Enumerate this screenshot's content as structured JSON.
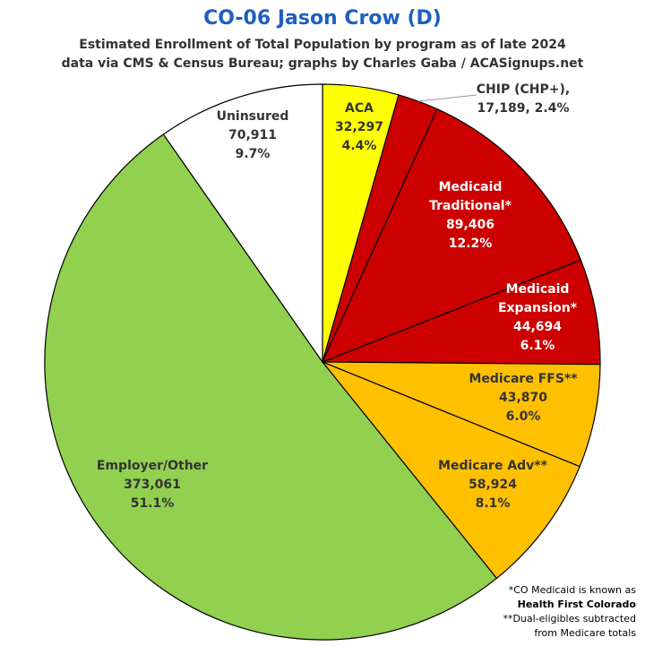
{
  "title": "CO-06 Jason Crow (D)",
  "subtitle_line1": "Estimated Enrollment of Total Population by program as of late 2024",
  "subtitle_line2": "data via CMS & Census Bureau; graphs by Charles Gaba / ACASignups.net",
  "footnotes": {
    "line1": "*CO Medicaid is known as",
    "line2": "Health First Colorado",
    "line3": "**Dual-eligibles subtracted",
    "line4": "from Medicare totals"
  },
  "chart_data": {
    "type": "pie",
    "start_angle": "12 o'clock, clockwise",
    "slices": [
      {
        "label": "ACA",
        "value": 32297,
        "value_text": "32,297",
        "percent": "4.4%",
        "color": "#ffff00",
        "text_color": "#333333"
      },
      {
        "label": "CHIP (CHP+),",
        "value": 17189,
        "value_text": "17,189, 2.4%",
        "percent": "2.4%",
        "color": "#cc0000",
        "text_color": "#333333"
      },
      {
        "label": "Medicaid Traditional*",
        "value": 89406,
        "value_text": "89,406",
        "percent": "12.2%",
        "color": "#cc0000",
        "text_color": "#ffffff"
      },
      {
        "label": "Medicaid Expansion*",
        "value": 44694,
        "value_text": "44,694",
        "percent": "6.1%",
        "color": "#cc0000",
        "text_color": "#ffffff"
      },
      {
        "label": "Medicare FFS**",
        "value": 43870,
        "value_text": "43,870",
        "percent": "6.0%",
        "color": "#ffc000",
        "text_color": "#333333"
      },
      {
        "label": "Medicare Adv**",
        "value": 58924,
        "value_text": "58,924",
        "percent": "8.1%",
        "color": "#ffc000",
        "text_color": "#333333"
      },
      {
        "label": "Employer/Other",
        "value": 373061,
        "value_text": "373,061",
        "percent": "51.1%",
        "color": "#92d050",
        "text_color": "#333333"
      },
      {
        "label": "Uninsured",
        "value": 70911,
        "value_text": "70,911",
        "percent": "9.7%",
        "color": "#ffffff",
        "text_color": "#333333"
      }
    ]
  }
}
